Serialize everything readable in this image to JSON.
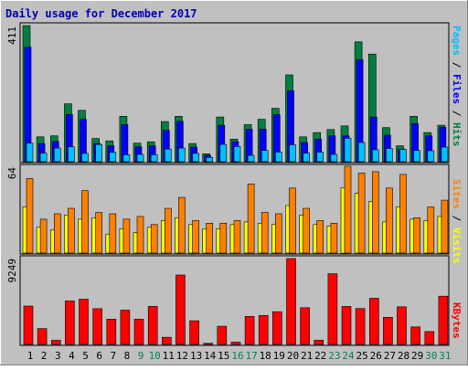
{
  "colors": {
    "frame_bg": "#c0c0c0",
    "title_color": "#0000b0",
    "axis_text": "#000000",
    "weekend_day": "#00805c",
    "hits": "#008040",
    "files": "#0000ff",
    "pages": "#00c0ff",
    "visits": "#ff8000",
    "sites": "#ffff00",
    "kbytes": "#ff0000"
  },
  "chart_data": [
    {
      "type": "bar",
      "panel": "hits_files_pages",
      "title": "Daily usage for December 2017",
      "ymax_label": "411",
      "ylim": [
        0,
        411
      ],
      "categories": [
        "1",
        "2",
        "3",
        "4",
        "5",
        "6",
        "7",
        "8",
        "9",
        "10",
        "11",
        "12",
        "13",
        "14",
        "15",
        "16",
        "17",
        "18",
        "19",
        "20",
        "21",
        "22",
        "23",
        "24",
        "25",
        "26",
        "27",
        "28",
        "29",
        "30",
        "31"
      ],
      "weekend_days": [
        "9",
        "10",
        "16",
        "17",
        "23",
        "24",
        "30",
        "31"
      ],
      "ylabel": {
        "a": "Pages",
        "sep1": " / ",
        "b": "Files",
        "sep2": " / ",
        "c": "Hits"
      },
      "series": [
        {
          "name": "Hits",
          "values": [
            411,
            75,
            78,
            175,
            155,
            70,
            63,
            137,
            56,
            60,
            121,
            137,
            55,
            24,
            135,
            68,
            112,
            128,
            161,
            262,
            75,
            88,
            97,
            108,
            362,
            325,
            103,
            48,
            137,
            88,
            110
          ]
        },
        {
          "name": "Files",
          "values": [
            346,
            55,
            61,
            143,
            128,
            55,
            48,
            112,
            45,
            48,
            95,
            122,
            44,
            19,
            110,
            60,
            98,
            98,
            142,
            214,
            58,
            68,
            78,
            78,
            308,
            135,
            80,
            38,
            115,
            78,
            104
          ]
        },
        {
          "name": "Pages",
          "values": [
            56,
            26,
            41,
            45,
            25,
            52,
            28,
            21,
            22,
            21,
            38,
            41,
            25,
            13,
            52,
            46,
            19,
            34,
            29,
            51,
            26,
            29,
            22,
            71,
            58,
            36,
            40,
            37,
            34,
            33,
            44
          ]
        }
      ]
    },
    {
      "type": "bar",
      "panel": "sites_visits",
      "ymax_label": "64",
      "ylim": [
        0,
        64
      ],
      "categories": [
        "1",
        "2",
        "3",
        "4",
        "5",
        "6",
        "7",
        "8",
        "9",
        "10",
        "11",
        "12",
        "13",
        "14",
        "15",
        "16",
        "17",
        "18",
        "19",
        "20",
        "21",
        "22",
        "23",
        "24",
        "25",
        "26",
        "27",
        "28",
        "29",
        "30",
        "31"
      ],
      "ylabel": {
        "a": "Sites",
        "sep1": " / ",
        "b": "Visits"
      },
      "series": [
        {
          "name": "Visits",
          "values": [
            55,
            25,
            29,
            33,
            46,
            30,
            29,
            25,
            27,
            21,
            33,
            41,
            24,
            22,
            22,
            24,
            51,
            30,
            29,
            48,
            33,
            24,
            22,
            64,
            59,
            60,
            48,
            58,
            26,
            34,
            39
          ]
        },
        {
          "name": "Sites",
          "values": [
            34,
            19,
            17,
            28,
            25,
            26,
            14,
            18,
            15,
            19,
            24,
            26,
            21,
            18,
            18,
            21,
            23,
            22,
            21,
            35,
            28,
            21,
            20,
            48,
            44,
            38,
            23,
            34,
            25,
            24,
            27
          ]
        }
      ]
    },
    {
      "type": "bar",
      "panel": "kbytes",
      "ymax_label": "9249",
      "ylim": [
        0,
        9249
      ],
      "categories": [
        "1",
        "2",
        "3",
        "4",
        "5",
        "6",
        "7",
        "8",
        "9",
        "10",
        "11",
        "12",
        "13",
        "14",
        "15",
        "16",
        "17",
        "18",
        "19",
        "20",
        "21",
        "22",
        "23",
        "24",
        "25",
        "26",
        "27",
        "28",
        "29",
        "30",
        "31"
      ],
      "ylabel": {
        "a": "KBytes"
      },
      "series": [
        {
          "name": "KBytes",
          "values": [
            4130,
            1700,
            440,
            4690,
            4870,
            3850,
            2720,
            3690,
            2720,
            4090,
            770,
            7480,
            2550,
            120,
            1960,
            250,
            3020,
            3120,
            3520,
            9249,
            3960,
            450,
            7620,
            4090,
            3870,
            4970,
            2920,
            4050,
            1890,
            1390,
            5200
          ]
        }
      ]
    }
  ]
}
